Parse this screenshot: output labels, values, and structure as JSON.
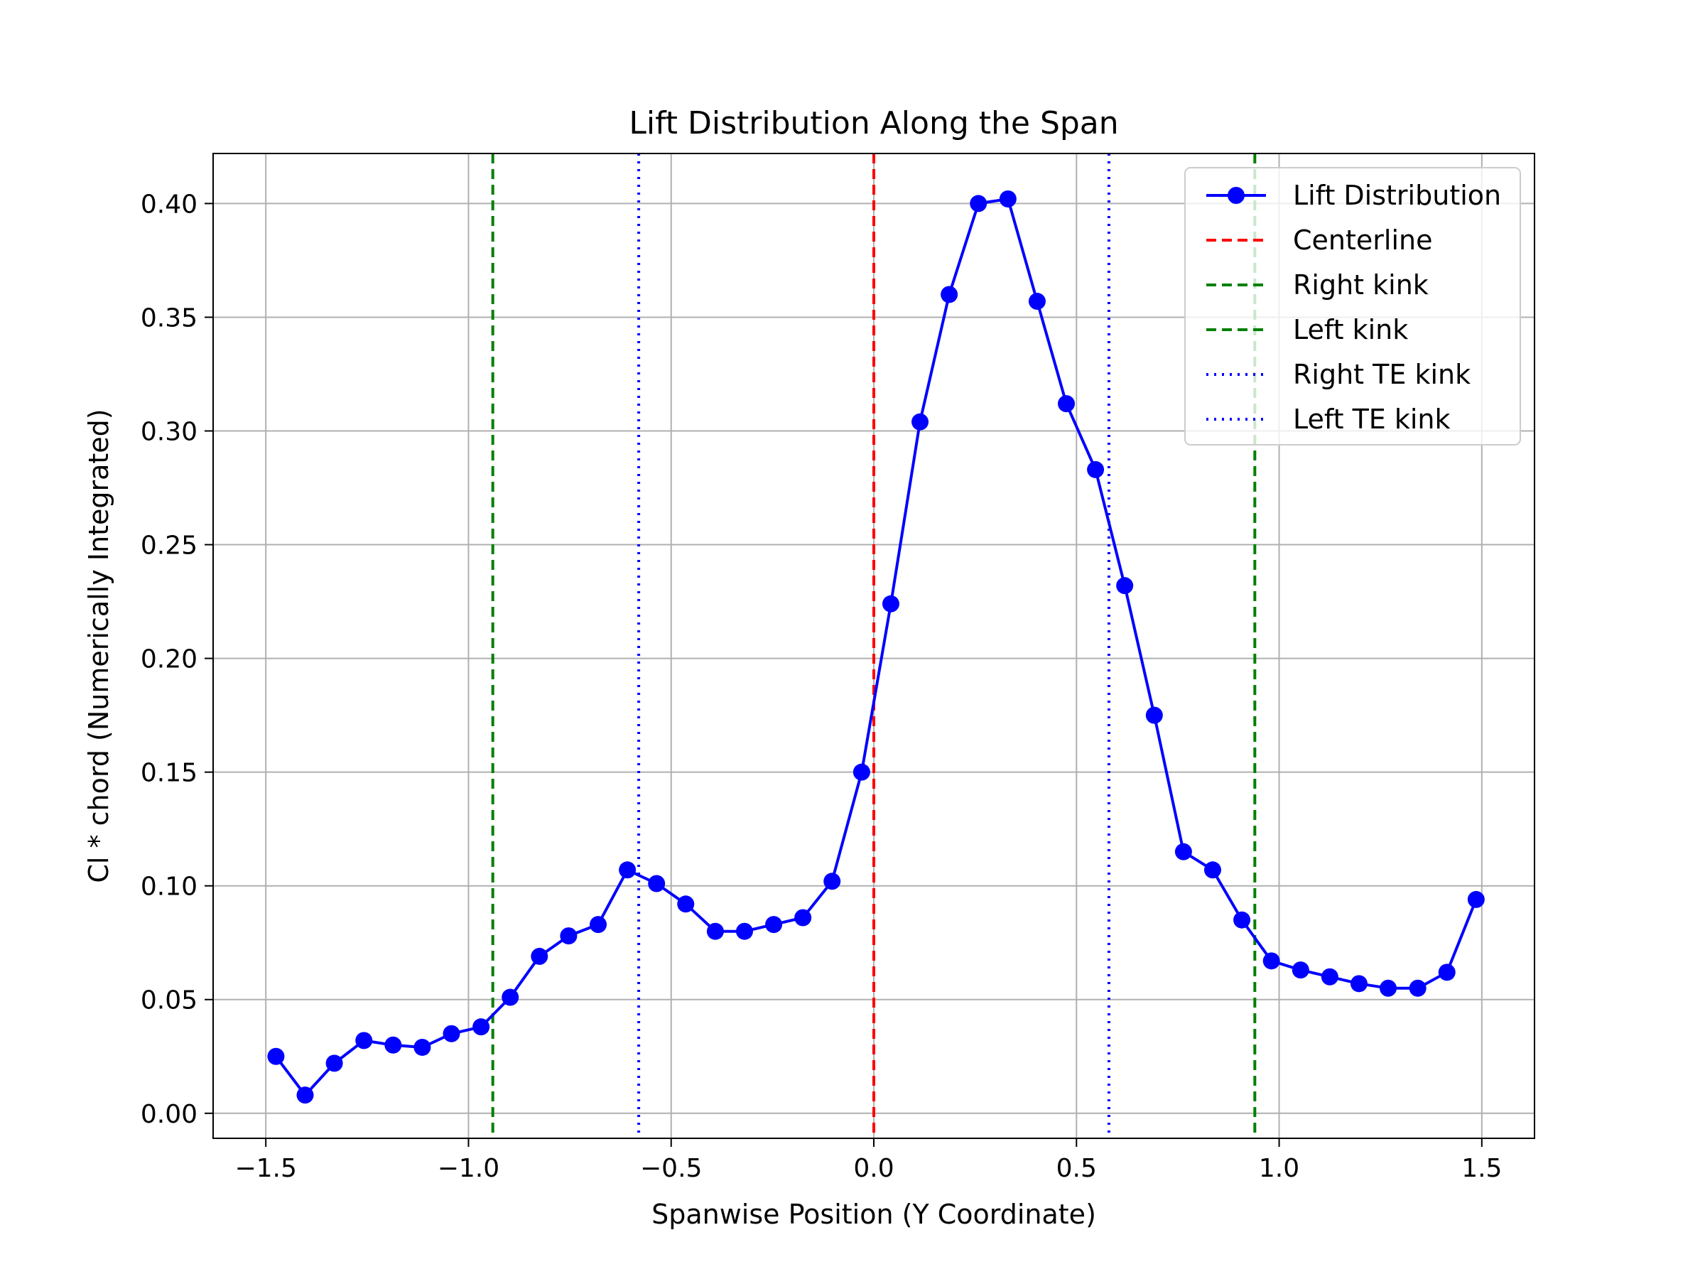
{
  "chart_data": {
    "type": "line",
    "title": "Lift Distribution Along the Span",
    "xlabel": "Spanwise Position (Y Coordinate)",
    "ylabel": "Cl * chord (Numerically Integrated)",
    "xlim": [
      -1.63,
      1.63
    ],
    "ylim": [
      -0.011,
      0.422
    ],
    "xticks": [
      -1.5,
      -1.0,
      -0.5,
      0.0,
      0.5,
      1.0,
      1.5
    ],
    "xtick_labels": [
      "−1.5",
      "−1.0",
      "−0.5",
      "0.0",
      "0.5",
      "1.0",
      "1.5"
    ],
    "yticks": [
      0.0,
      0.05,
      0.1,
      0.15,
      0.2,
      0.25,
      0.3,
      0.35,
      0.4
    ],
    "ytick_labels": [
      "0.00",
      "0.05",
      "0.10",
      "0.15",
      "0.20",
      "0.25",
      "0.30",
      "0.35",
      "0.40"
    ],
    "grid": true,
    "legend_position": "top-right",
    "series": [
      {
        "name": "Lift Distribution",
        "color": "#0000ff",
        "marker": "circle",
        "x": [
          -1.475,
          -1.403,
          -1.331,
          -1.258,
          -1.186,
          -1.114,
          -1.042,
          -0.969,
          -0.897,
          -0.825,
          -0.753,
          -0.68,
          -0.608,
          -0.536,
          -0.464,
          -0.391,
          -0.319,
          -0.247,
          -0.175,
          -0.103,
          -0.03,
          0.042,
          0.114,
          0.186,
          0.258,
          0.331,
          0.403,
          0.475,
          0.547,
          0.619,
          0.692,
          0.764,
          0.836,
          0.908,
          0.981,
          1.053,
          1.125,
          1.197,
          1.269,
          1.342,
          1.414,
          1.486
        ],
        "y": [
          0.025,
          0.008,
          0.022,
          0.032,
          0.03,
          0.029,
          0.035,
          0.038,
          0.051,
          0.069,
          0.078,
          0.083,
          0.107,
          0.101,
          0.092,
          0.08,
          0.08,
          0.083,
          0.086,
          0.102,
          0.15,
          0.224,
          0.304,
          0.36,
          0.4,
          0.402,
          0.357,
          0.312,
          0.283,
          0.232,
          0.175,
          0.115,
          0.107,
          0.085,
          0.067,
          0.063,
          0.06,
          0.057,
          0.055,
          0.055,
          0.062,
          0.094
        ]
      }
    ],
    "vertical_lines": [
      {
        "name": "Centerline",
        "x": 0.0,
        "color": "#ff0000",
        "style": "dashed"
      },
      {
        "name": "Right kink",
        "x": 0.94,
        "color": "#008000",
        "style": "dashed"
      },
      {
        "name": "Left kink",
        "x": -0.94,
        "color": "#008000",
        "style": "dashed"
      },
      {
        "name": "Right TE kink",
        "x": 0.58,
        "color": "#0000ff",
        "style": "dotted"
      },
      {
        "name": "Left TE kink",
        "x": -0.58,
        "color": "#0000ff",
        "style": "dotted"
      }
    ]
  }
}
